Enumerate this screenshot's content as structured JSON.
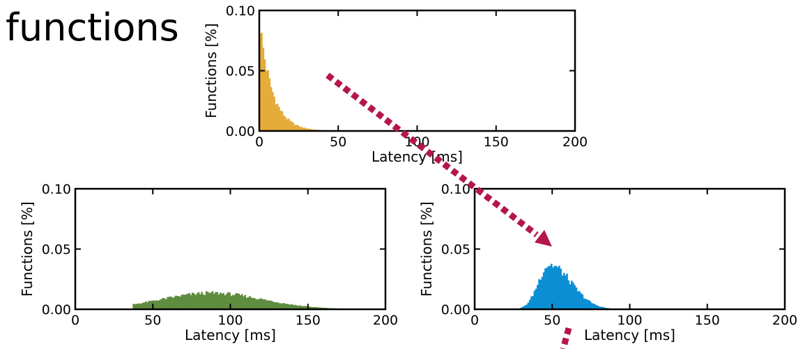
{
  "heading": "functions",
  "arrow_color": "#b5164a",
  "chart_data": [
    {
      "id": "top",
      "type": "bar",
      "xlabel": "Latency [ms]",
      "ylabel": "Functions [%]",
      "xlim": [
        0,
        200
      ],
      "ylim": [
        0,
        0.1
      ],
      "xticks": [
        0,
        50,
        100,
        150,
        200
      ],
      "yticks": [
        0.0,
        0.05,
        0.1
      ],
      "ytick_labels": [
        "0.00",
        "0.05",
        "0.10"
      ],
      "color": "#e5ac3a",
      "bin_width": 1,
      "distribution": {
        "shape": "exponential",
        "peak": 0.093,
        "decay_ms": 8,
        "end_ms": 45
      }
    },
    {
      "id": "bottom-left",
      "type": "bar",
      "xlabel": "Latency [ms]",
      "ylabel": "Functions [%]",
      "xlim": [
        0,
        200
      ],
      "ylim": [
        0,
        0.1
      ],
      "xticks": [
        0,
        50,
        100,
        150,
        200
      ],
      "yticks": [
        0.0,
        0.05,
        0.1
      ],
      "ytick_labels": [
        "0.00",
        "0.05",
        "0.10"
      ],
      "color": "#5f8c3e",
      "bin_width": 1,
      "distribution": {
        "shape": "gaussian",
        "peak": 0.0135,
        "mean_ms": 88,
        "sd_ms": 33,
        "start_ms": 37,
        "end_ms": 195
      }
    },
    {
      "id": "bottom-right",
      "type": "bar",
      "xlabel": "Latency [ms]",
      "ylabel": "Functions [%]",
      "xlim": [
        0,
        200
      ],
      "ylim": [
        0,
        0.1
      ],
      "xticks": [
        0,
        50,
        100,
        150,
        200
      ],
      "yticks": [
        0.0,
        0.05,
        0.1
      ],
      "ytick_labels": [
        "0.00",
        "0.05",
        "0.10"
      ],
      "color": "#0b8fd4",
      "bin_width": 1,
      "distribution": {
        "shape": "skewed",
        "peak": 0.037,
        "mean_ms": 48,
        "sd_left_ms": 7,
        "sd_right_ms": 14,
        "start_ms": 29,
        "end_ms": 100
      }
    }
  ]
}
